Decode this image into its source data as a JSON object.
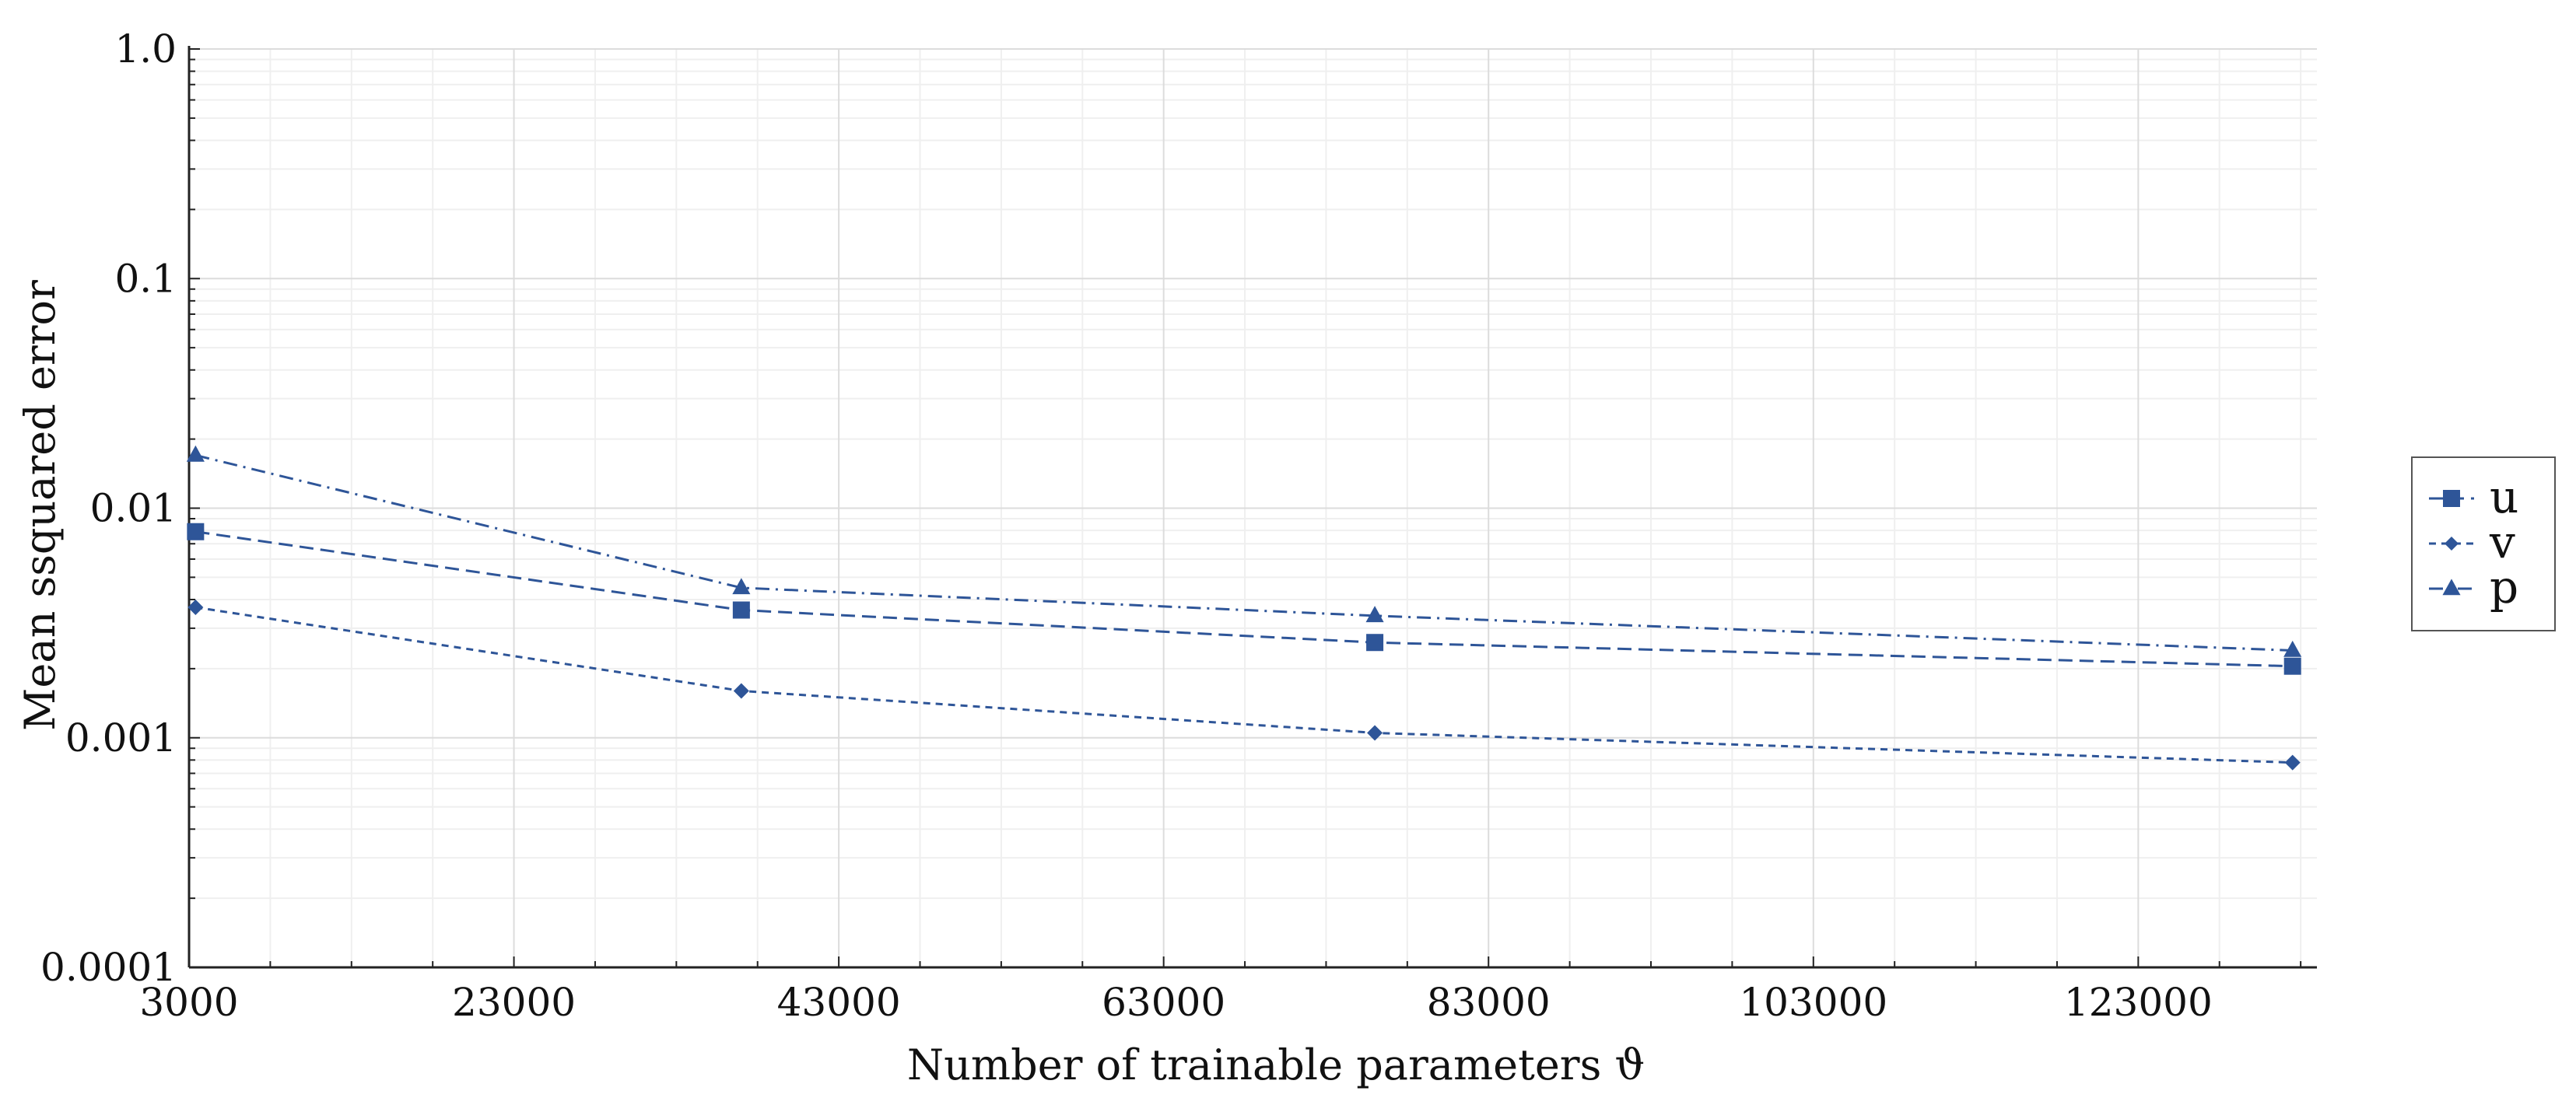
{
  "chart_data": {
    "type": "line",
    "xlabel": "Number of trainable parameters ϑ",
    "ylabel": "Mean ssquared error",
    "x_scale": "linear",
    "y_scale": "log",
    "xlim": [
      3000,
      134000
    ],
    "ylim": [
      0.0001,
      1.0
    ],
    "x_ticks": [
      3000,
      23000,
      43000,
      63000,
      83000,
      103000,
      123000
    ],
    "x_tick_labels": [
      "3000",
      "23000",
      "43000",
      "63000",
      "83000",
      "103000",
      "123000"
    ],
    "y_ticks": [
      0.0001,
      0.001,
      0.01,
      0.1,
      1.0
    ],
    "y_tick_labels": [
      "0.0001",
      "0.001",
      "0.01",
      "0.1",
      "1.0"
    ],
    "grid": true,
    "legend_position": "right",
    "x": [
      3400,
      37000,
      76000,
      132500
    ],
    "series": [
      {
        "name": "u",
        "marker": "square",
        "dash": "dashed",
        "values": [
          0.0079,
          0.0036,
          0.0026,
          0.00205
        ]
      },
      {
        "name": "v",
        "marker": "diamond",
        "dash": "dotted",
        "values": [
          0.0037,
          0.0016,
          0.00105,
          0.00078
        ]
      },
      {
        "name": "p",
        "marker": "triangle",
        "dash": "dashdot",
        "values": [
          0.017,
          0.0045,
          0.0034,
          0.0024
        ]
      }
    ],
    "colors": {
      "series": "#2e5598",
      "axis": "#222222",
      "grid_major": "#dcdcdc",
      "grid_minor": "#efefef"
    }
  }
}
